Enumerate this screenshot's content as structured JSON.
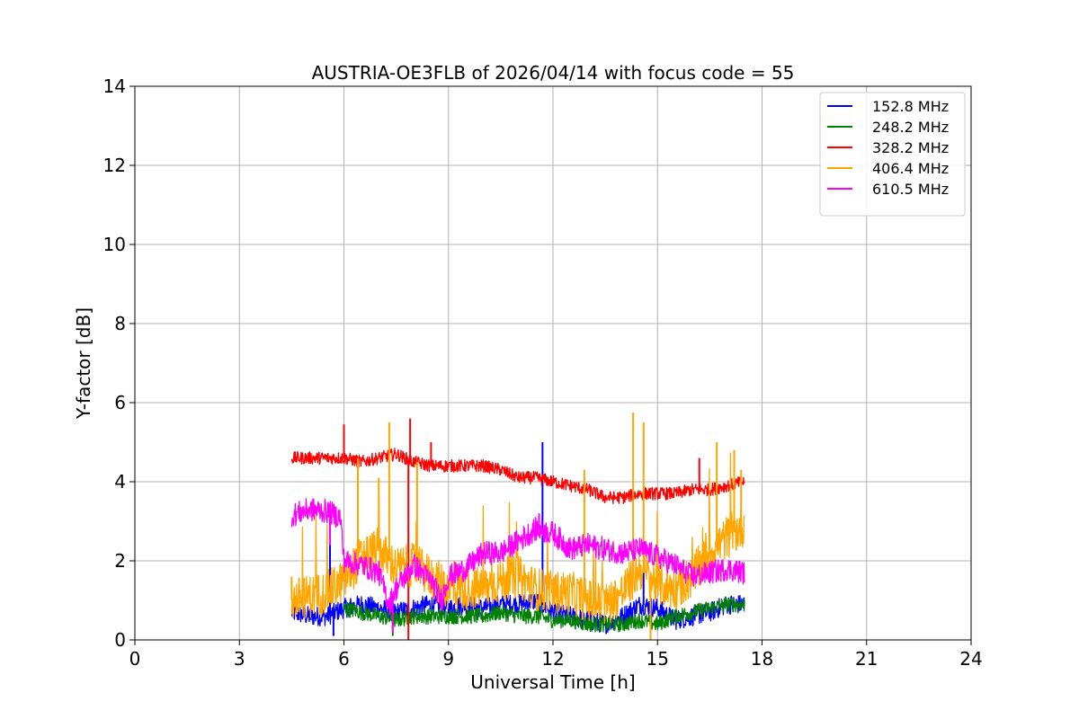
{
  "chart_data": {
    "type": "line",
    "title": "AUSTRIA-OE3FLB of 2026/04/14 with focus code = 55",
    "xlabel": "Universal Time [h]",
    "ylabel": "Y-factor [dB]",
    "xlim": [
      0,
      24
    ],
    "ylim": [
      0,
      14
    ],
    "x_ticks": [
      0,
      3,
      6,
      9,
      12,
      15,
      18,
      21,
      24
    ],
    "y_ticks": [
      0,
      2,
      4,
      6,
      8,
      10,
      12,
      14
    ],
    "grid": true,
    "legend_position": "top-right",
    "x_start": 4.5,
    "x_end": 17.5,
    "series": [
      {
        "name": "152.8 MHz",
        "color": "#0000ff",
        "x": [
          4.5,
          5.0,
          5.5,
          6.0,
          6.5,
          7.0,
          7.5,
          8.0,
          8.5,
          9.0,
          9.5,
          10.0,
          10.5,
          11.0,
          11.5,
          12.0,
          12.5,
          13.0,
          13.5,
          14.0,
          14.5,
          15.0,
          15.5,
          16.0,
          16.5,
          17.0,
          17.5
        ],
        "y": [
          0.7,
          0.6,
          0.6,
          0.8,
          0.9,
          0.8,
          0.7,
          0.8,
          0.9,
          0.8,
          0.9,
          0.8,
          0.9,
          0.9,
          1.0,
          0.7,
          0.6,
          0.5,
          0.4,
          0.6,
          0.9,
          0.8,
          0.5,
          0.6,
          0.7,
          0.9,
          0.9
        ],
        "spikes": [
          [
            5.6,
            2.6
          ],
          [
            5.7,
            0.1
          ],
          [
            11.7,
            5.0
          ],
          [
            14.6,
            1.7
          ]
        ]
      },
      {
        "name": "248.2 MHz",
        "color": "#008000",
        "x": [
          6.0,
          6.5,
          7.0,
          7.5,
          8.0,
          8.5,
          9.0,
          9.5,
          10.0,
          10.5,
          11.0,
          11.5,
          12.0,
          12.5,
          13.0,
          13.5,
          14.0,
          14.5,
          15.0,
          15.5,
          16.0,
          16.5,
          17.0,
          17.5
        ],
        "y": [
          0.8,
          0.7,
          0.6,
          0.5,
          0.6,
          0.6,
          0.6,
          0.6,
          0.6,
          0.7,
          0.6,
          0.6,
          0.5,
          0.5,
          0.4,
          0.4,
          0.4,
          0.5,
          0.4,
          0.6,
          0.7,
          0.8,
          0.9,
          0.9
        ],
        "spikes": [
          [
            7.4,
            0.1
          ],
          [
            11.6,
            1.1
          ]
        ]
      },
      {
        "name": "328.2 MHz",
        "color": "#ff0000",
        "x": [
          4.5,
          5.0,
          5.5,
          6.0,
          6.5,
          7.0,
          7.5,
          8.0,
          8.5,
          9.0,
          9.5,
          10.0,
          10.5,
          11.0,
          11.5,
          12.0,
          12.5,
          13.0,
          13.5,
          14.0,
          14.5,
          15.0,
          15.5,
          16.0,
          16.5,
          17.0,
          17.5
        ],
        "y": [
          4.6,
          4.6,
          4.6,
          4.6,
          4.5,
          4.6,
          4.7,
          4.5,
          4.4,
          4.4,
          4.4,
          4.4,
          4.3,
          4.1,
          4.1,
          4.0,
          3.9,
          3.8,
          3.6,
          3.6,
          3.7,
          3.7,
          3.7,
          3.8,
          3.8,
          3.9,
          4.0
        ],
        "spikes": [
          [
            6.0,
            5.45
          ],
          [
            7.9,
            5.6
          ],
          [
            7.85,
            0.0
          ],
          [
            8.5,
            5.0
          ],
          [
            16.2,
            4.6
          ]
        ]
      },
      {
        "name": "406.4 MHz",
        "color": "#ffa500",
        "x": [
          4.5,
          5.0,
          5.5,
          6.0,
          6.5,
          7.0,
          7.5,
          8.0,
          8.5,
          9.0,
          9.5,
          10.0,
          10.5,
          11.0,
          11.5,
          12.0,
          12.5,
          13.0,
          13.5,
          14.0,
          14.5,
          15.0,
          15.5,
          16.0,
          16.5,
          17.0,
          17.5
        ],
        "y": [
          1.0,
          1.1,
          1.2,
          1.5,
          2.1,
          2.3,
          1.8,
          1.9,
          1.6,
          1.3,
          1.3,
          1.3,
          1.5,
          1.6,
          1.3,
          1.2,
          1.2,
          1.0,
          0.9,
          1.2,
          1.8,
          1.4,
          1.3,
          1.6,
          2.2,
          2.6,
          2.9
        ],
        "spikes": [
          [
            4.5,
            1.6
          ],
          [
            6.4,
            4.6
          ],
          [
            7.0,
            4.1
          ],
          [
            7.3,
            5.5
          ],
          [
            8.1,
            4.5
          ],
          [
            12.9,
            4.3
          ],
          [
            14.3,
            5.75
          ],
          [
            14.6,
            5.5
          ],
          [
            16.7,
            5.0
          ],
          [
            17.2,
            4.8
          ],
          [
            17.4,
            4.3
          ],
          [
            14.8,
            0.0
          ]
        ]
      },
      {
        "name": "610.5 MHz",
        "color": "#ff00ff",
        "x": [
          4.5,
          5.0,
          5.5,
          5.9,
          6.0,
          6.5,
          7.0,
          7.3,
          7.5,
          8.0,
          8.5,
          8.8,
          9.0,
          9.5,
          10.0,
          10.5,
          11.0,
          11.5,
          12.0,
          12.5,
          13.0,
          13.5,
          14.0,
          14.5,
          15.0,
          15.5,
          16.0,
          16.5,
          17.0,
          17.5
        ],
        "y": [
          3.15,
          3.3,
          3.25,
          3.1,
          2.0,
          1.9,
          1.7,
          0.9,
          1.3,
          1.9,
          1.5,
          1.0,
          1.6,
          1.8,
          2.2,
          2.2,
          2.5,
          2.8,
          2.7,
          2.3,
          2.4,
          2.3,
          2.2,
          2.3,
          2.1,
          1.9,
          1.6,
          1.7,
          1.8,
          1.7
        ],
        "spikes": [
          [
            5.6,
            2.4
          ],
          [
            7.4,
            0.2
          ],
          [
            11.6,
            3.2
          ]
        ]
      }
    ]
  }
}
